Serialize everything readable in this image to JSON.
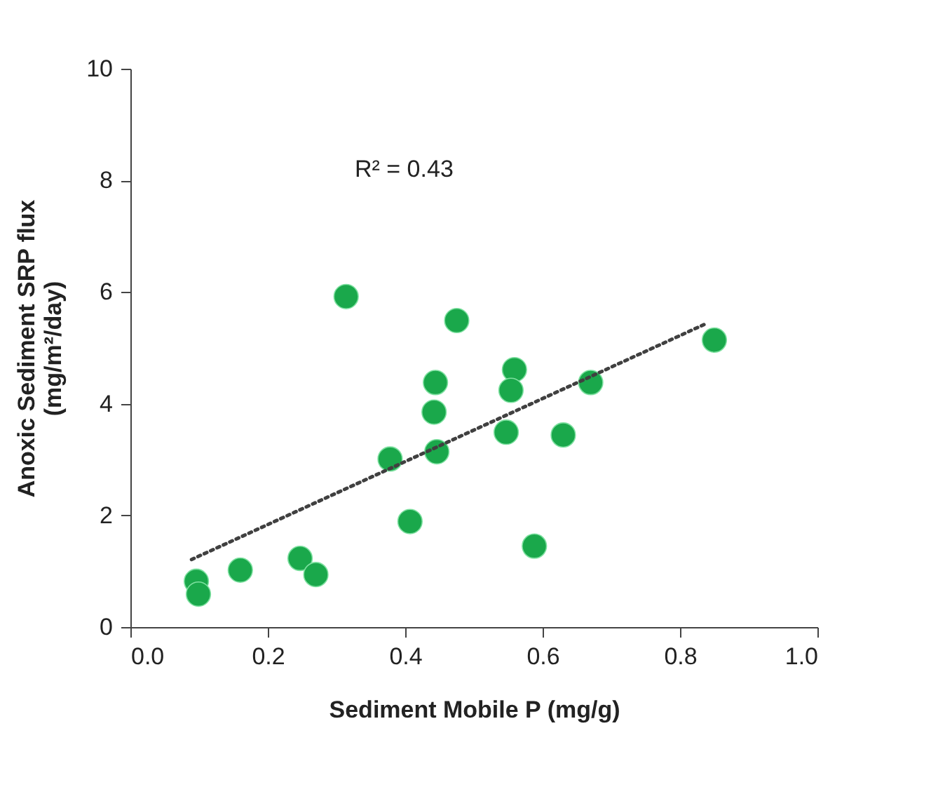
{
  "chart_data": {
    "type": "scatter",
    "xlabel": "Sediment Mobile P (mg/g)",
    "ylabel": "Anoxic Sediment SRP flux\n(mg/m²/day)",
    "annotations": [
      "R² = 0.43"
    ],
    "xlim": [
      0,
      1
    ],
    "xticks": [
      {
        "value": 0,
        "label": "0.0"
      },
      0.2,
      0.4,
      0.6,
      0.8,
      {
        "value": 1,
        "label": "1.0"
      }
    ],
    "ylim": [
      0,
      10
    ],
    "yticks": [
      0,
      2,
      4,
      6,
      8,
      10
    ],
    "grid": false,
    "legend": false,
    "series": [
      {
        "color": "#1aa84b",
        "marker": "circle",
        "x": [
          0.096,
          0.099,
          0.16,
          0.247,
          0.27,
          0.314,
          0.378,
          0.407,
          0.444,
          0.442,
          0.446,
          0.475,
          0.559,
          0.554,
          0.547,
          0.63,
          0.67,
          0.588,
          0.85
        ],
        "values": [
          0.82,
          0.59,
          1.02,
          1.23,
          0.94,
          5.92,
          3.01,
          1.89,
          4.38,
          3.85,
          3.14,
          5.49,
          4.61,
          4.24,
          3.49,
          3.44,
          4.38,
          1.45,
          5.14
        ]
      },
      {
        "type": "line",
        "color": "#404040",
        "line_style": "dotted",
        "x": [
          0.089,
          0.837
        ],
        "values": [
          1.21,
          5.43
        ]
      }
    ]
  }
}
